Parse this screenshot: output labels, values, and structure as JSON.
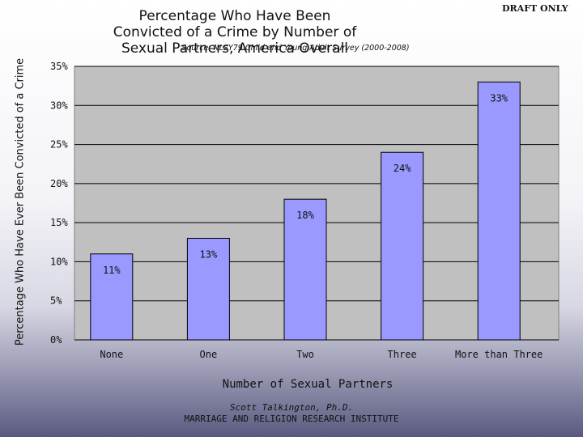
{
  "draft_label": "DRAFT ONLY",
  "credit": {
    "author": "Scott Talkington, Ph.D.",
    "institute": "MARRIAGE AND RELIGION RESEARCH INSTITUTE"
  },
  "colors": {
    "bar_fill": "#9999ff",
    "plot_bg": "#c0c0c0"
  },
  "chart_data": {
    "type": "bar",
    "title": "Percentage Who Have Been Convicted of a Crime by Number of Sexual Partners, America Overall",
    "subtitle": "Source: NLSY79 Child and Young Adult Survey (2000-2008)",
    "xlabel": "Number of Sexual Partners",
    "ylabel": "Percentage Who Have Ever Been Convicted of a Crime",
    "categories": [
      "None",
      "One",
      "Two",
      "Three",
      "More than Three"
    ],
    "values": [
      11,
      13,
      18,
      24,
      33
    ],
    "data_labels": [
      "11%",
      "13%",
      "18%",
      "24%",
      "33%"
    ],
    "ylim": [
      0,
      35
    ],
    "yticks": [
      0,
      5,
      10,
      15,
      20,
      25,
      30,
      35
    ],
    "ytick_labels": [
      "0%",
      "5%",
      "10%",
      "15%",
      "20%",
      "25%",
      "30%",
      "35%"
    ],
    "grid": true,
    "legend": "none"
  }
}
